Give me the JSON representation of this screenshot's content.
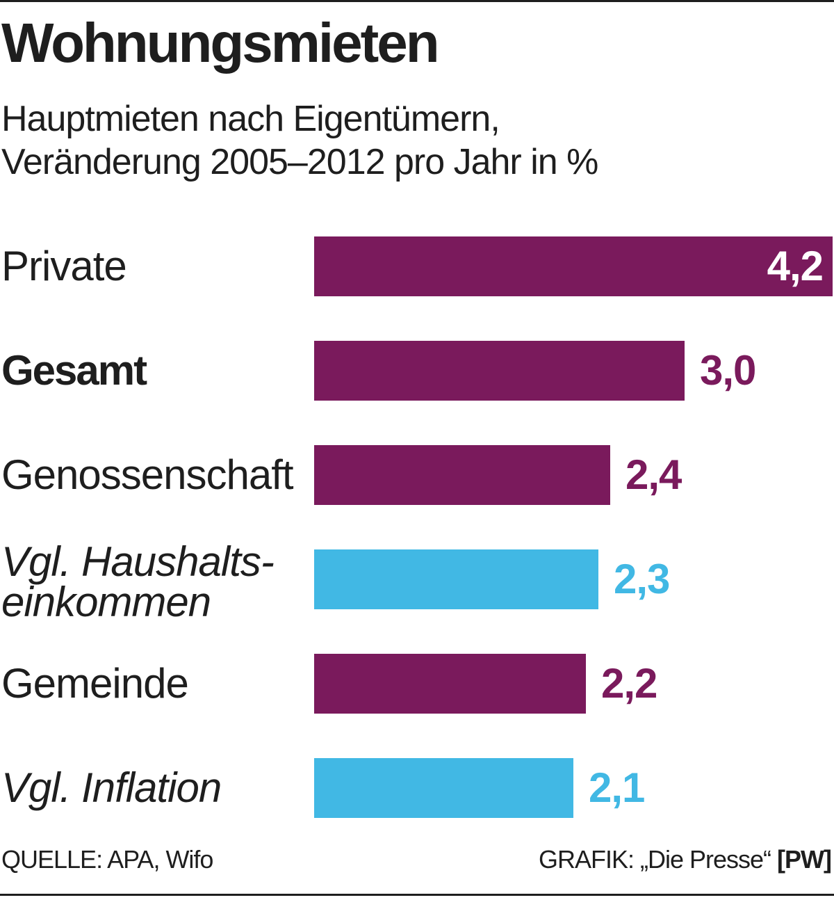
{
  "title": "Wohnungsmieten",
  "subtitle_lines": [
    "Hauptmieten nach Eigentümern,",
    "Veränderung 2005–2012 pro Jahr in %"
  ],
  "colors": {
    "primary": "#7a1a5c",
    "comparison": "#41b8e4"
  },
  "chart_data": {
    "type": "bar",
    "orientation": "horizontal",
    "categories": [
      "Private",
      "Gesamt",
      "Genossenschaft",
      "Vgl. Haushalts-einkommen",
      "Gemeinde",
      "Vgl. Inflation"
    ],
    "category_label_lines": [
      [
        "Private"
      ],
      [
        "Gesamt"
      ],
      [
        "Genossenschaft"
      ],
      [
        "Vgl. Haushalts-",
        "einkommen"
      ],
      [
        "Gemeinde"
      ],
      [
        "Vgl. Inflation"
      ]
    ],
    "category_styles": [
      "normal",
      "bold",
      "normal",
      "italic",
      "normal",
      "italic"
    ],
    "values": [
      4.2,
      3.0,
      2.4,
      2.3,
      2.2,
      2.1
    ],
    "value_labels": [
      "4,2",
      "3,0",
      "2,4",
      "2,3",
      "2,2",
      "2,1"
    ],
    "bar_color_keys": [
      "primary",
      "primary",
      "primary",
      "comparison",
      "primary",
      "comparison"
    ],
    "value_label_inside_bar": [
      true,
      false,
      false,
      false,
      false,
      false
    ],
    "xlim": [
      0,
      4.2
    ],
    "grid": false,
    "legend": "none"
  },
  "footer": {
    "source": "QUELLE: APA, Wifo",
    "credit": "GRAFIK: „Die Presse“",
    "credit_tag": "[PW]"
  }
}
